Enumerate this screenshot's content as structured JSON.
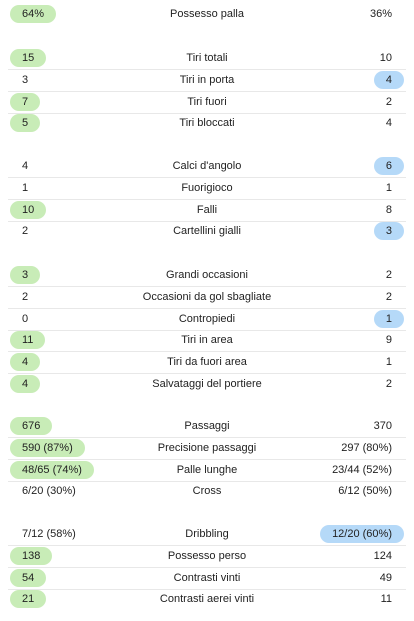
{
  "colors": {
    "home_highlight": "#c8ecb7",
    "away_highlight": "#b5d9f8"
  },
  "groups": [
    {
      "rows": [
        {
          "label": "Possesso palla",
          "home": "64%",
          "away": "36%",
          "winner": "home"
        }
      ]
    },
    {
      "rows": [
        {
          "label": "Tiri totali",
          "home": "15",
          "away": "10",
          "winner": "home"
        },
        {
          "label": "Tiri in porta",
          "home": "3",
          "away": "4",
          "winner": "away"
        },
        {
          "label": "Tiri fuori",
          "home": "7",
          "away": "2",
          "winner": "home"
        },
        {
          "label": "Tiri bloccati",
          "home": "5",
          "away": "4",
          "winner": "home"
        }
      ]
    },
    {
      "rows": [
        {
          "label": "Calci d'angolo",
          "home": "4",
          "away": "6",
          "winner": "away"
        },
        {
          "label": "Fuorigioco",
          "home": "1",
          "away": "1",
          "winner": "none"
        },
        {
          "label": "Falli",
          "home": "10",
          "away": "8",
          "winner": "home"
        },
        {
          "label": "Cartellini gialli",
          "home": "2",
          "away": "3",
          "winner": "away"
        }
      ]
    },
    {
      "rows": [
        {
          "label": "Grandi occasioni",
          "home": "3",
          "away": "2",
          "winner": "home"
        },
        {
          "label": "Occasioni da gol sbagliate",
          "home": "2",
          "away": "2",
          "winner": "none"
        },
        {
          "label": "Contropiedi",
          "home": "0",
          "away": "1",
          "winner": "away"
        },
        {
          "label": "Tiri in area",
          "home": "11",
          "away": "9",
          "winner": "home"
        },
        {
          "label": "Tiri da fuori area",
          "home": "4",
          "away": "1",
          "winner": "home"
        },
        {
          "label": "Salvataggi del portiere",
          "home": "4",
          "away": "2",
          "winner": "home"
        }
      ]
    },
    {
      "rows": [
        {
          "label": "Passaggi",
          "home": "676",
          "away": "370",
          "winner": "home"
        },
        {
          "label": "Precisione passaggi",
          "home": "590 (87%)",
          "away": "297 (80%)",
          "winner": "home"
        },
        {
          "label": "Palle lunghe",
          "home": "48/65 (74%)",
          "away": "23/44 (52%)",
          "winner": "home"
        },
        {
          "label": "Cross",
          "home": "6/20 (30%)",
          "away": "6/12 (50%)",
          "winner": "none"
        }
      ]
    },
    {
      "rows": [
        {
          "label": "Dribbling",
          "home": "7/12 (58%)",
          "away": "12/20 (60%)",
          "winner": "away"
        },
        {
          "label": "Possesso perso",
          "home": "138",
          "away": "124",
          "winner": "home"
        },
        {
          "label": "Contrasti vinti",
          "home": "54",
          "away": "49",
          "winner": "home"
        },
        {
          "label": "Contrasti aerei vinti",
          "home": "21",
          "away": "11",
          "winner": "home"
        }
      ]
    }
  ]
}
